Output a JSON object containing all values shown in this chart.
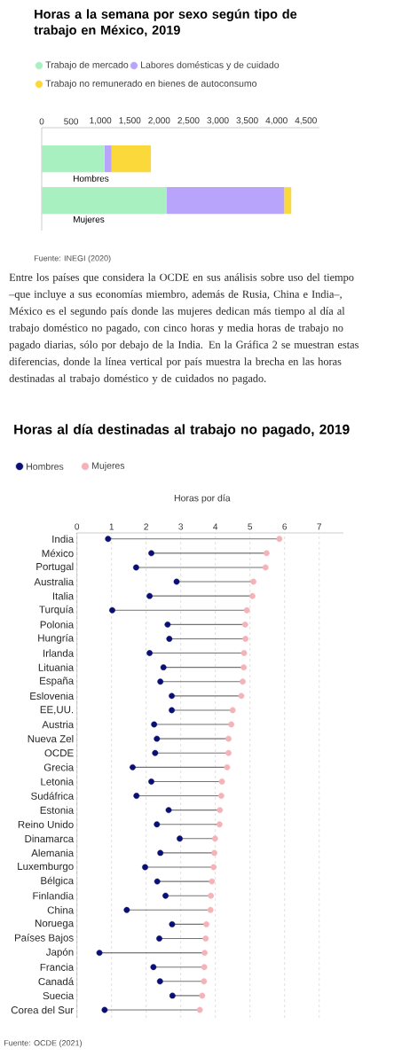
{
  "chart_data": [
    {
      "type": "bar",
      "orientation": "horizontal",
      "stacked": true,
      "title": "Horas a la semana por sexo según tipo de trabajo en México, 2019",
      "categories": [
        "Hombres",
        "Mujeres"
      ],
      "series": [
        {
          "name": "Trabajo de mercado",
          "color": "#a8f0c0",
          "values": [
            1070,
            2130
          ]
        },
        {
          "name": "Labores domésticas y de cuidado",
          "color": "#b9a4fb",
          "values": [
            120,
            2000
          ]
        },
        {
          "name": "Trabajo no remunerado en bienes de autoconsumo",
          "color": "#fcd93a",
          "values": [
            670,
            120
          ]
        }
      ],
      "xlim": [
        0,
        4730
      ],
      "xticks": [
        0,
        500,
        {
          "value": 1000,
          "label": "1,000"
        },
        {
          "value": 1500,
          "label": "1,500"
        },
        {
          "value": 2000,
          "label": "2,000"
        },
        {
          "value": 2500,
          "label": "2,500"
        },
        {
          "value": 3000,
          "label": "3,000"
        },
        {
          "value": 3500,
          "label": "3,500"
        },
        {
          "value": 4000,
          "label": "4,000"
        },
        {
          "value": 4500,
          "label": "4,500"
        }
      ],
      "legend": "top",
      "annotations": [
        "Fuente: INEGI (2020)",
        "Entre los países que considera la OCDE en sus análisis sobre uso del tiempo –que incluye a sus economías miembro, además de Rusia, China e India–, México es el segundo país donde las mujeres dedican más tiempo al día al trabajo doméstico no pagado, con cinco horas y media horas de trabajo no pagado diarias, sólo por debajo de la India. En la Gráfica 2 se muestran estas diferencias, donde la línea vertical por país muestra la brecha en las horas destinadas al trabajo doméstico y de cuidados no pagado."
      ]
    },
    {
      "type": "scatter",
      "title": "Horas al día destinadas al trabajo no pagado, 2019",
      "xlabel": "Horas por día",
      "orientation": "horizontal",
      "marker": "circle",
      "grid": "x",
      "legend": "top left",
      "categories": [
        "India",
        "México",
        "Portugal",
        "Australia",
        "Italia",
        "Turquía",
        "Polonia",
        "Hungría",
        "Irlanda",
        "Lituania",
        "España",
        "Eslovenia",
        "EE,UU.",
        "Austria",
        "Nueva Zel",
        "OCDE",
        "Grecia",
        "Letonia",
        "Sudáfrica",
        "Estonia",
        "Reino Unido",
        "Dinamarca",
        "Alemania",
        "Luxemburgo",
        "Bélgica",
        "Finlandia",
        "China",
        "Noruega",
        "Países Bajos",
        "Japón",
        "Francia",
        "Canadá",
        "Suecia",
        "Corea del Sur"
      ],
      "series": [
        {
          "name": "Hombres",
          "color": "#0a0f73",
          "values": [
            0.9,
            2.15,
            1.71,
            2.88,
            2.1,
            1.02,
            2.62,
            2.67,
            2.1,
            2.5,
            2.41,
            2.74,
            2.74,
            2.23,
            2.31,
            2.26,
            1.61,
            2.15,
            1.72,
            2.65,
            2.31,
            2.97,
            2.41,
            1.97,
            2.32,
            2.56,
            1.44,
            2.75,
            2.38,
            0.65,
            2.21,
            2.4,
            2.76,
            0.8
          ]
        },
        {
          "name": "Mujeres",
          "color": "#f4b3b8",
          "values": [
            5.85,
            5.48,
            5.45,
            5.1,
            5.07,
            4.91,
            4.86,
            4.87,
            4.83,
            4.82,
            4.79,
            4.75,
            4.5,
            4.46,
            4.38,
            4.38,
            4.34,
            4.19,
            4.17,
            4.13,
            4.12,
            3.99,
            3.97,
            3.95,
            3.9,
            3.87,
            3.86,
            3.74,
            3.72,
            3.69,
            3.68,
            3.67,
            3.62,
            3.55
          ]
        }
      ],
      "xlim": [
        0,
        7.7
      ],
      "xticks": [
        0,
        1,
        2,
        3,
        4,
        5,
        6,
        7
      ],
      "annotations": [
        "Fuente: OCDE (2021)"
      ]
    }
  ]
}
